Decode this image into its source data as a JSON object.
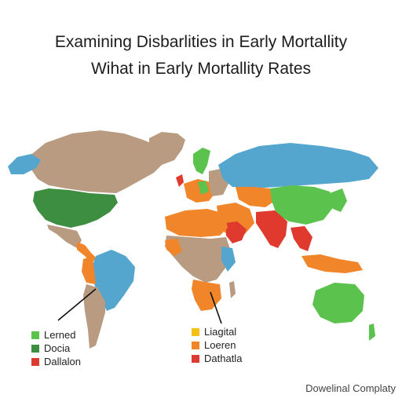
{
  "title_line1": "Examining Disbarlities in Early Mortallity",
  "title_line2": "Wihat in Early Mortallity Rates",
  "colors": {
    "light_green": "#5cc24e",
    "dark_green": "#3e8e41",
    "red": "#e03a2e",
    "yellow": "#f2c218",
    "orange": "#f0852a",
    "tan": "#b89b80",
    "blue": "#54a6cf",
    "legend_red": "#dc3b32"
  },
  "legend_left": [
    {
      "label": "Lerned",
      "color": "#5cc24e"
    },
    {
      "label": "Docia",
      "color": "#3e8e41"
    },
    {
      "label": "Dallalon",
      "color": "#dc3b32"
    }
  ],
  "legend_right": [
    {
      "label": "Liagital",
      "color": "#f2c218"
    },
    {
      "label": "Loeren",
      "color": "#f0852a"
    },
    {
      "label": "Dathatla",
      "color": "#dc3b32"
    }
  ],
  "source": "Dowelinal Complaty"
}
